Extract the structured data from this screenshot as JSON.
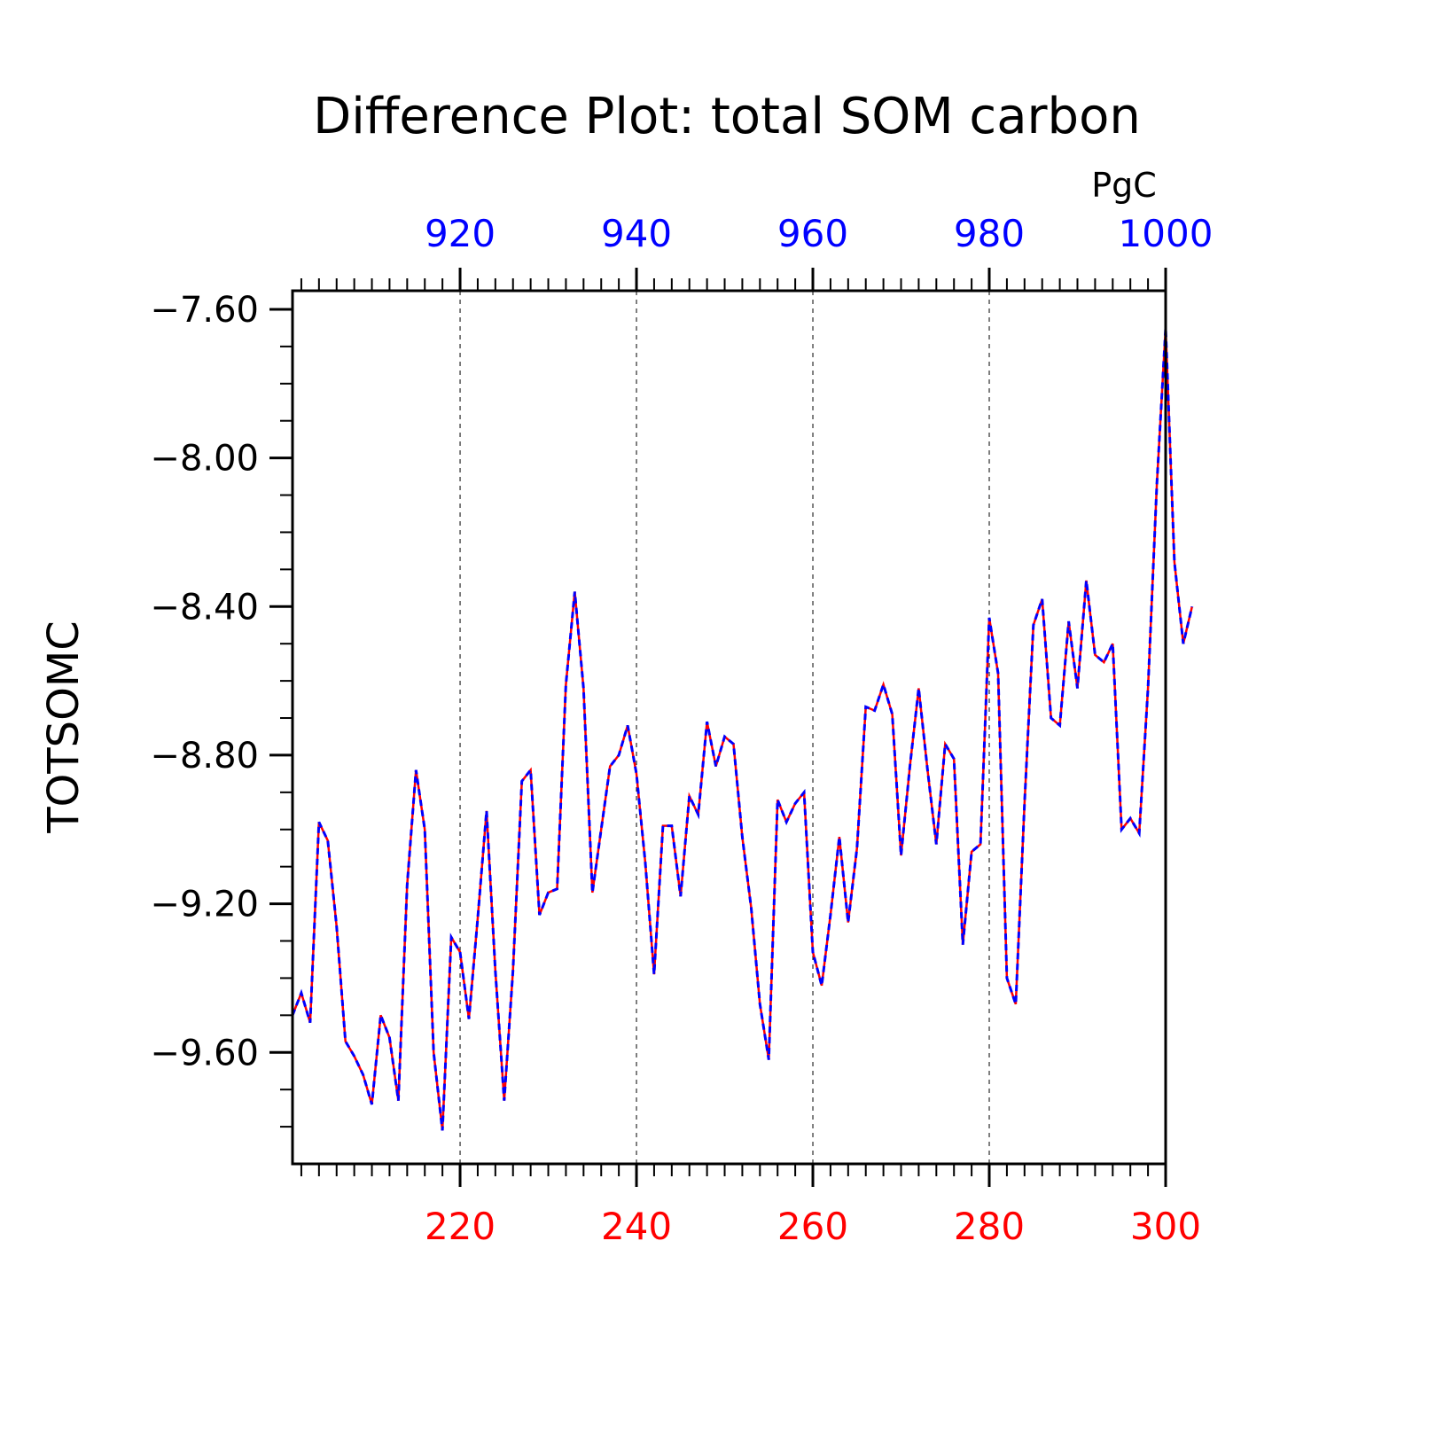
{
  "chart_data": {
    "type": "line",
    "title": "Difference Plot: total SOM carbon",
    "units": "PgC",
    "ylabel": "TOTSOMC",
    "xlabel": "",
    "xlim": [
      201,
      300
    ],
    "ylim": [
      -9.9,
      -7.55
    ],
    "bottom_axis": {
      "ticks": [
        220,
        240,
        260,
        280,
        300
      ],
      "color": "#ff0000"
    },
    "top_axis": {
      "ticks": [
        920,
        940,
        960,
        980,
        1000
      ],
      "color": "#0000ff"
    },
    "yticks": [
      -7.6,
      -8.0,
      -8.4,
      -8.8,
      -9.2,
      -9.6
    ],
    "ytick_labels": [
      "−7.60",
      "−8.00",
      "−8.40",
      "−8.80",
      "−9.20",
      "−9.60"
    ],
    "grid": "vertical dashed at labeled x ticks",
    "series": [
      {
        "line_color": "#ff0000",
        "style": "solid",
        "x_start": 201,
        "x_step": 1,
        "values": [
          -9.5,
          -9.44,
          -9.52,
          -8.98,
          -9.03,
          -9.26,
          -9.57,
          -9.61,
          -9.66,
          -9.74,
          -9.5,
          -9.56,
          -9.73,
          -9.15,
          -8.84,
          -9.0,
          -9.6,
          -9.81,
          -9.29,
          -9.33,
          -9.51,
          -9.24,
          -8.95,
          -9.38,
          -9.73,
          -9.38,
          -8.87,
          -8.84,
          -9.23,
          -9.17,
          -9.16,
          -8.61,
          -8.36,
          -8.62,
          -9.17,
          -9.0,
          -8.83,
          -8.8,
          -8.72,
          -8.85,
          -9.09,
          -9.39,
          -8.99,
          -8.99,
          -9.18,
          -8.91,
          -8.96,
          -8.71,
          -8.83,
          -8.75,
          -8.77,
          -9.02,
          -9.21,
          -9.47,
          -9.62,
          -8.92,
          -8.98,
          -8.93,
          -8.9,
          -9.33,
          -9.42,
          -9.23,
          -9.02,
          -9.25,
          -9.05,
          -8.67,
          -8.68,
          -8.61,
          -8.69,
          -9.07,
          -8.83,
          -8.62,
          -8.84,
          -9.04,
          -8.77,
          -8.81,
          -9.31,
          -9.06,
          -9.04,
          -8.43,
          -8.58,
          -9.4,
          -9.47,
          -8.93,
          -8.45,
          -8.38,
          -8.7,
          -8.72,
          -8.44,
          -8.62,
          -8.33,
          -8.53,
          -8.55,
          -8.5,
          -9.0,
          -8.97,
          -9.01,
          -8.62,
          -8.07,
          -7.65,
          -8.28,
          -8.5,
          -8.4
        ]
      },
      {
        "line_color": "#0000ff",
        "style": "dashed",
        "x_start": 201,
        "x_step": 1,
        "values": [
          -9.5,
          -9.44,
          -9.52,
          -8.98,
          -9.03,
          -9.26,
          -9.57,
          -9.61,
          -9.66,
          -9.74,
          -9.5,
          -9.56,
          -9.73,
          -9.15,
          -8.84,
          -9.0,
          -9.6,
          -9.81,
          -9.29,
          -9.33,
          -9.51,
          -9.24,
          -8.95,
          -9.38,
          -9.73,
          -9.38,
          -8.87,
          -8.84,
          -9.23,
          -9.17,
          -9.16,
          -8.61,
          -8.36,
          -8.62,
          -9.17,
          -9.0,
          -8.83,
          -8.8,
          -8.72,
          -8.85,
          -9.09,
          -9.39,
          -8.99,
          -8.99,
          -9.18,
          -8.91,
          -8.96,
          -8.71,
          -8.83,
          -8.75,
          -8.77,
          -9.02,
          -9.21,
          -9.47,
          -9.62,
          -8.92,
          -8.98,
          -8.93,
          -8.9,
          -9.33,
          -9.42,
          -9.23,
          -9.02,
          -9.25,
          -9.05,
          -8.67,
          -8.68,
          -8.61,
          -8.69,
          -9.07,
          -8.83,
          -8.62,
          -8.84,
          -9.04,
          -8.77,
          -8.81,
          -9.31,
          -9.06,
          -9.04,
          -8.43,
          -8.58,
          -9.4,
          -9.47,
          -8.93,
          -8.45,
          -8.38,
          -8.7,
          -8.72,
          -8.44,
          -8.62,
          -8.33,
          -8.53,
          -8.55,
          -8.5,
          -9.0,
          -8.97,
          -9.01,
          -8.62,
          -8.07,
          -7.65,
          -8.28,
          -8.5,
          -8.4
        ]
      }
    ]
  }
}
